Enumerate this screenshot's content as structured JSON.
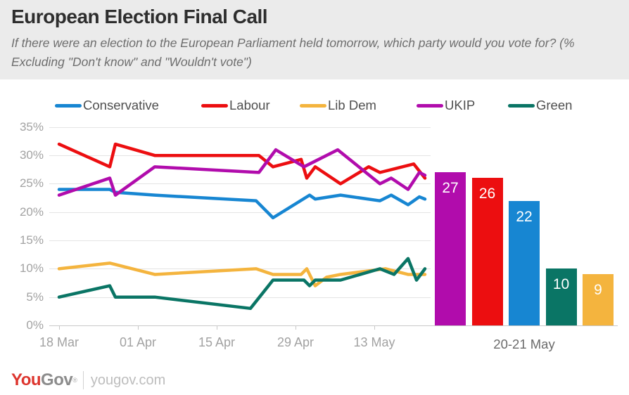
{
  "header": {
    "title": "European Election Final Call",
    "subtitle": "If there were an election to the European Parliament held tomorrow, which party would you vote for? (% Excluding \"Don't know\" and \"Wouldn't vote\")"
  },
  "footer": {
    "logo_you": "You",
    "logo_gov": "Gov",
    "logo_reg": "®",
    "site": "yougov.com"
  },
  "colors": {
    "conservative": "#1786d2",
    "labour": "#ec0e10",
    "libdem": "#f4b43e",
    "ukip": "#b10cac",
    "green": "#0a7565",
    "header_bg": "#ebebeb",
    "grid": "#e4e4e4",
    "axis_text": "#a2a2a2"
  },
  "chart_data": [
    {
      "type": "line",
      "unit": "%",
      "x_axis": {
        "tick_labels": [
          "18 Mar",
          "01 Apr",
          "15 Apr",
          "29 Apr",
          "13 May"
        ],
        "tick_days": [
          0,
          14,
          28,
          42,
          56
        ],
        "day_range": [
          0,
          65.5
        ]
      },
      "y_axis": {
        "tick_labels": [
          "35%",
          "30%",
          "25%",
          "20%",
          "15%",
          "10%",
          "5%",
          "0%"
        ],
        "tick_values": [
          35,
          30,
          25,
          20,
          15,
          10,
          5,
          0
        ],
        "min": 0,
        "max": 36.6,
        "grid": true
      },
      "legend_position": "top",
      "series": [
        {
          "name": "Conservative",
          "color": "#1786d2",
          "points": [
            [
              0,
              24
            ],
            [
              9,
              24
            ],
            [
              10,
              23.5
            ],
            [
              17,
              23
            ],
            [
              35,
              22
            ],
            [
              38,
              19
            ],
            [
              44.5,
              23
            ],
            [
              45.5,
              22.3
            ],
            [
              50,
              23
            ],
            [
              57,
              22
            ],
            [
              59,
              23
            ],
            [
              62,
              21.3
            ],
            [
              64,
              22.7
            ],
            [
              65,
              22.3
            ]
          ]
        },
        {
          "name": "Labour",
          "color": "#ec0e10",
          "points": [
            [
              0,
              32
            ],
            [
              9,
              28
            ],
            [
              10,
              32
            ],
            [
              17,
              30
            ],
            [
              35.5,
              30
            ],
            [
              38,
              28
            ],
            [
              43,
              29.3
            ],
            [
              44,
              26
            ],
            [
              45.5,
              28
            ],
            [
              50,
              25
            ],
            [
              55,
              28
            ],
            [
              57,
              27
            ],
            [
              63,
              28.5
            ],
            [
              65,
              26
            ]
          ]
        },
        {
          "name": "Lib Dem",
          "color": "#f4b43e",
          "points": [
            [
              0,
              10
            ],
            [
              9,
              11
            ],
            [
              17,
              9
            ],
            [
              35,
              10
            ],
            [
              38,
              9
            ],
            [
              43,
              9
            ],
            [
              44,
              10
            ],
            [
              45.5,
              7
            ],
            [
              47.5,
              8.5
            ],
            [
              50,
              9
            ],
            [
              58,
              10
            ],
            [
              62,
              9
            ],
            [
              65,
              9
            ]
          ]
        },
        {
          "name": "UKIP",
          "color": "#b10cac",
          "points": [
            [
              0,
              23
            ],
            [
              9,
              26
            ],
            [
              10,
              23
            ],
            [
              17,
              28
            ],
            [
              35.5,
              27
            ],
            [
              38.5,
              31
            ],
            [
              43.5,
              28
            ],
            [
              49.5,
              31
            ],
            [
              57,
              25
            ],
            [
              59,
              26
            ],
            [
              62,
              24
            ],
            [
              64,
              27
            ],
            [
              65,
              26.5
            ]
          ]
        },
        {
          "name": "Green",
          "color": "#0a7565",
          "points": [
            [
              0,
              5
            ],
            [
              9,
              7
            ],
            [
              10,
              5
            ],
            [
              17,
              5
            ],
            [
              34,
              3
            ],
            [
              38,
              8
            ],
            [
              43.5,
              8
            ],
            [
              44.5,
              7
            ],
            [
              45.5,
              8
            ],
            [
              50,
              8
            ],
            [
              57,
              10
            ],
            [
              59.5,
              9
            ],
            [
              62,
              11.8
            ],
            [
              63.5,
              8
            ],
            [
              65,
              10
            ]
          ]
        }
      ]
    },
    {
      "type": "bar",
      "categories": [
        "UKIP",
        "Labour",
        "Conservative",
        "Green",
        "Lib Dem"
      ],
      "values": [
        27,
        26,
        22,
        10,
        9
      ],
      "colors": [
        "#b10cac",
        "#ec0e10",
        "#1786d2",
        "#0a7565",
        "#f4b43e"
      ],
      "value_labels": [
        "27",
        "26",
        "22",
        "10",
        "9"
      ],
      "xlabel": "20-21 May",
      "ylim": [
        0,
        36.6
      ]
    }
  ]
}
